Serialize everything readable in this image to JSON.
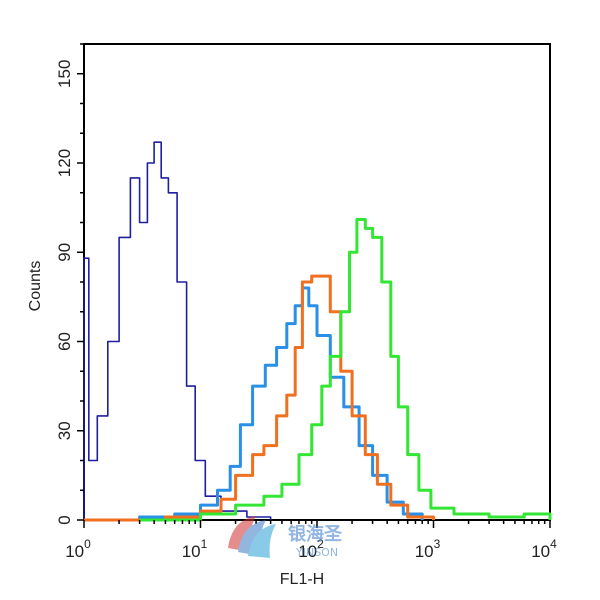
{
  "chart_data": {
    "type": "line",
    "xlabel": "FL1-H",
    "ylabel": "Counts",
    "x_scale": "log",
    "xlim": [
      1,
      10000
    ],
    "ylim": [
      0,
      160
    ],
    "x_ticks": [
      {
        "base": "10",
        "exp": "0",
        "value": 1
      },
      {
        "base": "10",
        "exp": "1",
        "value": 10
      },
      {
        "base": "10",
        "exp": "2",
        "value": 100
      },
      {
        "base": "10",
        "exp": "3",
        "value": 1000
      },
      {
        "base": "10",
        "exp": "4",
        "value": 10000
      }
    ],
    "y_ticks": [
      {
        "label": "0",
        "value": 0
      },
      {
        "label": "30",
        "value": 30
      },
      {
        "label": "60",
        "value": 60
      },
      {
        "label": "90",
        "value": 90
      },
      {
        "label": "120",
        "value": 120
      },
      {
        "label": "150",
        "value": 150
      }
    ],
    "grid": false,
    "series": [
      {
        "color": "#1f1fa0",
        "points": [
          [
            1,
            0
          ],
          [
            1,
            88
          ],
          [
            1.1,
            20
          ],
          [
            1.3,
            35
          ],
          [
            1.6,
            60
          ],
          [
            2,
            95
          ],
          [
            2.5,
            115
          ],
          [
            3,
            100
          ],
          [
            3.5,
            120
          ],
          [
            4,
            127
          ],
          [
            4.6,
            115
          ],
          [
            5.3,
            110
          ],
          [
            6.3,
            80
          ],
          [
            7.6,
            45
          ],
          [
            9,
            20
          ],
          [
            11,
            8
          ],
          [
            15,
            3
          ],
          [
            25,
            1
          ],
          [
            40,
            0
          ]
        ]
      },
      {
        "color": "#2a8fe6",
        "points": [
          [
            1,
            0
          ],
          [
            3,
            1
          ],
          [
            6,
            2
          ],
          [
            10,
            5
          ],
          [
            14,
            10
          ],
          [
            18,
            18
          ],
          [
            22,
            32
          ],
          [
            28,
            45
          ],
          [
            36,
            52
          ],
          [
            45,
            58
          ],
          [
            55,
            66
          ],
          [
            65,
            72
          ],
          [
            75,
            78
          ],
          [
            85,
            72
          ],
          [
            100,
            62
          ],
          [
            130,
            48
          ],
          [
            170,
            38
          ],
          [
            230,
            25
          ],
          [
            300,
            15
          ],
          [
            400,
            6
          ],
          [
            550,
            2
          ],
          [
            800,
            0
          ]
        ]
      },
      {
        "color": "#f07020",
        "points": [
          [
            1,
            0
          ],
          [
            5,
            1
          ],
          [
            10,
            3
          ],
          [
            15,
            7
          ],
          [
            20,
            15
          ],
          [
            28,
            22
          ],
          [
            35,
            25
          ],
          [
            45,
            35
          ],
          [
            55,
            42
          ],
          [
            65,
            58
          ],
          [
            75,
            80
          ],
          [
            90,
            82
          ],
          [
            110,
            82
          ],
          [
            130,
            70
          ],
          [
            160,
            50
          ],
          [
            200,
            35
          ],
          [
            260,
            22
          ],
          [
            330,
            12
          ],
          [
            430,
            5
          ],
          [
            600,
            1
          ],
          [
            1000,
            0
          ]
        ]
      },
      {
        "color": "#33e633",
        "points": [
          [
            3,
            0
          ],
          [
            10,
            2
          ],
          [
            20,
            5
          ],
          [
            35,
            8
          ],
          [
            50,
            12
          ],
          [
            70,
            22
          ],
          [
            90,
            32
          ],
          [
            110,
            45
          ],
          [
            130,
            55
          ],
          [
            160,
            70
          ],
          [
            190,
            90
          ],
          [
            220,
            101
          ],
          [
            260,
            98
          ],
          [
            300,
            95
          ],
          [
            360,
            80
          ],
          [
            430,
            55
          ],
          [
            500,
            38
          ],
          [
            600,
            22
          ],
          [
            750,
            10
          ],
          [
            950,
            4
          ],
          [
            1500,
            2
          ],
          [
            3000,
            1
          ],
          [
            6000,
            2
          ],
          [
            10000,
            0
          ]
        ]
      }
    ]
  },
  "watermark": {
    "text_cn": "银海圣",
    "text_en": "YINSON"
  }
}
